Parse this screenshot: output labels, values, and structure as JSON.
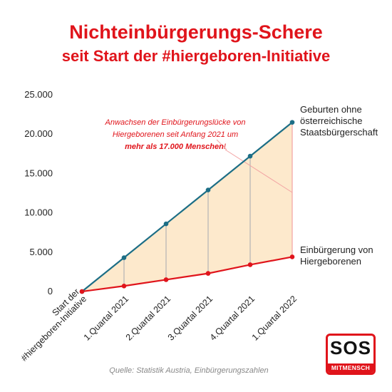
{
  "header": {
    "title_line1": "Nichteinbürgerungs-Schere",
    "title_line2": "seit Start der #hiergeboren-Initiative"
  },
  "source": "Quelle: Statistik Austria, Einbürgerungszahlen",
  "logo": {
    "big": "SOS",
    "small": "MITMENSCH"
  },
  "annotation": {
    "line1": "Anwachsen der Einbürgerungslücke von",
    "line2": "Hiergeborenen seit Anfang 2021 um",
    "line3_bold": "mehr als 17.000 Menschen",
    "line3_tail": "!"
  },
  "series_labels": {
    "births": [
      "Geburten ohne",
      "österreichische",
      "Staatsbürgerschaft"
    ],
    "naturalization": [
      "Einbürgerung von",
      "Hiergeborenen"
    ]
  },
  "colors": {
    "accent": "#e0141b",
    "births_line": "#1c6e86",
    "naturalization_line": "#e0141b",
    "gap_fill": "#fde9cc",
    "connector": "#b4b4b4"
  },
  "chart_data": {
    "type": "line",
    "categories": [
      "Start der #hiergeboren-Initiative",
      "1.Quartal 2021",
      "2.Quartal 2021",
      "3.Quartal 2021",
      "4.Quartal 2021",
      "1.Quartal 2022"
    ],
    "category_lines": [
      [
        "Start der",
        "#hiergeboren-Initiative"
      ],
      [
        "1.Quartal 2021"
      ],
      [
        "2.Quartal 2021"
      ],
      [
        "3.Quartal 2021"
      ],
      [
        "4.Quartal 2021"
      ],
      [
        "1.Quartal 2022"
      ]
    ],
    "series": [
      {
        "name": "Geburten ohne österreichische Staatsbürgerschaft",
        "values": [
          0,
          4300,
          8600,
          12900,
          17200,
          21500
        ]
      },
      {
        "name": "Einbürgerung von Hiergeborenen",
        "values": [
          0,
          700,
          1500,
          2300,
          3400,
          4400
        ]
      }
    ],
    "ylim": [
      0,
      25000
    ],
    "yticks": [
      0,
      5000,
      10000,
      15000,
      20000,
      25000
    ],
    "ytick_labels": [
      "0",
      "5.000",
      "10.000",
      "15.000",
      "20.000",
      "25.000"
    ],
    "grid": false
  }
}
